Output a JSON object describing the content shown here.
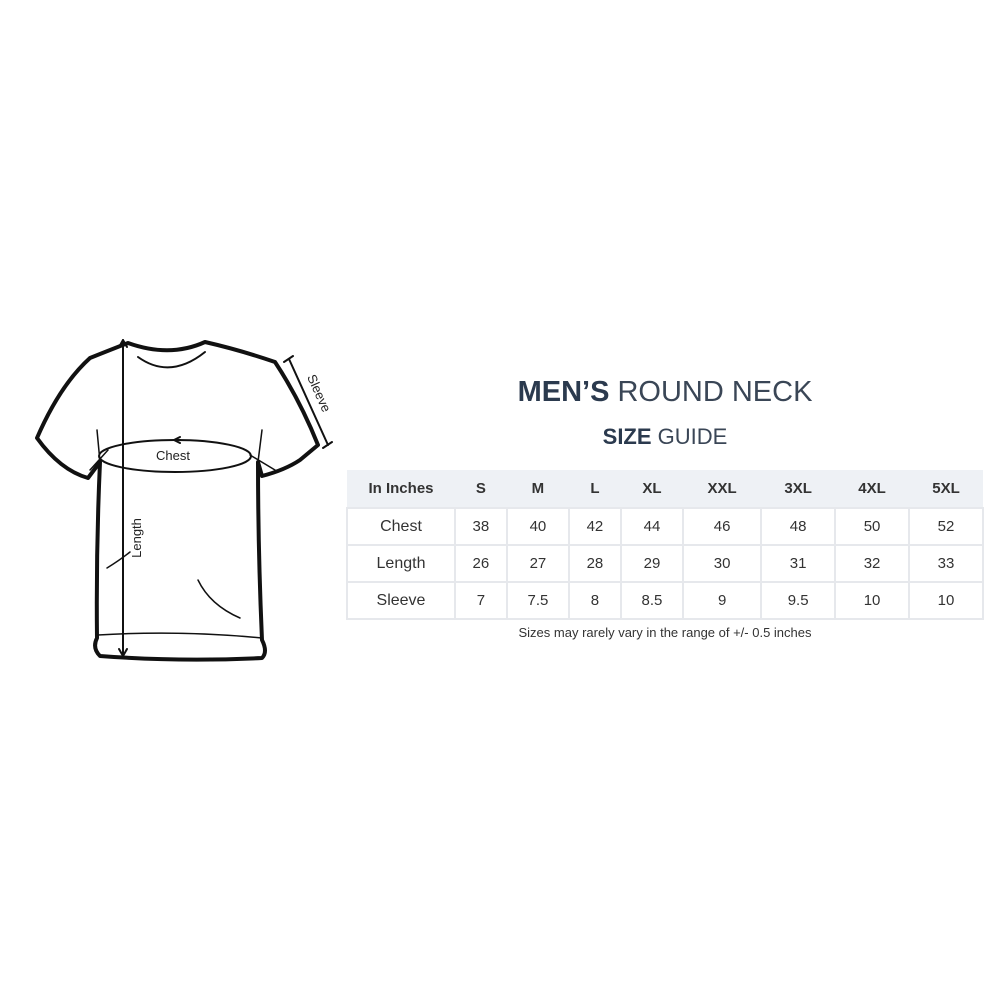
{
  "title": {
    "bold": "MEN’S",
    "light": "ROUND NECK"
  },
  "subtitle": {
    "bold": "SIZE",
    "light": "GUIDE"
  },
  "diagram": {
    "chest_label": "Chest",
    "length_label": "Length",
    "sleeve_label": "Sleeve"
  },
  "table": {
    "headers": [
      "In Inches",
      "S",
      "M",
      "L",
      "XL",
      "XXL",
      "3XL",
      "4XL",
      "5XL"
    ],
    "rows": [
      [
        "Chest",
        "38",
        "40",
        "42",
        "44",
        "46",
        "48",
        "50",
        "52"
      ],
      [
        "Length",
        "26",
        "27",
        "28",
        "29",
        "30",
        "31",
        "32",
        "33"
      ],
      [
        "Sleeve",
        "7",
        "7.5",
        "8",
        "8.5",
        "9",
        "9.5",
        "10",
        "10"
      ]
    ]
  },
  "note": "Sizes may rarely vary in the range of +/- 0.5 inches",
  "colors": {
    "title": "#2b3a4e",
    "header_bg": "#eef1f5",
    "border": "#e6e8ec"
  }
}
